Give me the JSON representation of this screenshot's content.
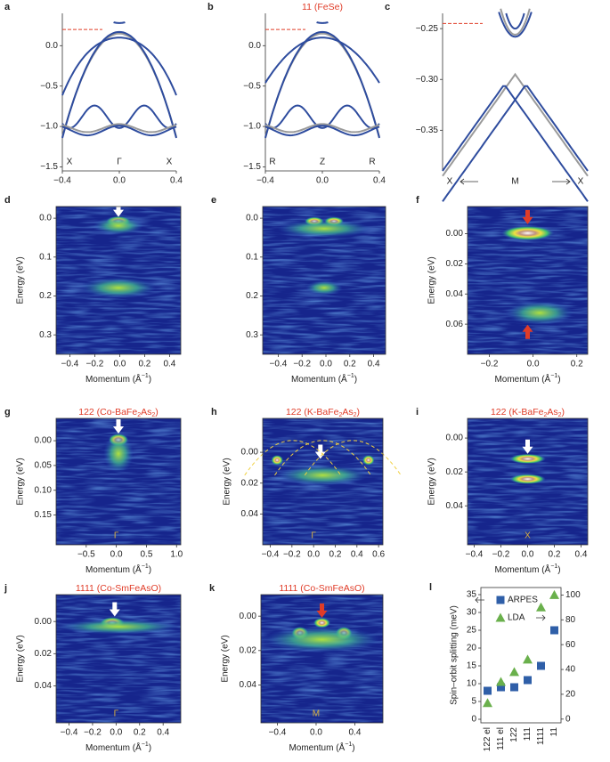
{
  "panels": [
    {
      "label": "a",
      "xlim": [
        -0.4,
        0.4
      ],
      "ylim": [
        -1.55,
        0.4
      ],
      "xticks": [
        {
          "value": -0.4,
          "label": "−0.4"
        },
        {
          "value": 0,
          "label": "0.0"
        },
        {
          "value": 0.4,
          "label": "0.4"
        }
      ],
      "yticks": [
        {
          "value": 0,
          "label": "0.0"
        },
        {
          "value": -0.5,
          "label": "−0.5"
        },
        {
          "value": -1,
          "label": "−1.0"
        },
        {
          "value": -1.5,
          "label": "−1.5"
        }
      ],
      "points": [
        "X",
        "Γ",
        "X"
      ]
    },
    {
      "label": "b",
      "title": [
        "11 (FeSe)"
      ],
      "xlim": [
        -0.4,
        0.4
      ],
      "ylim": [
        -1.55,
        0.4
      ],
      "xticks": [
        {
          "value": -0.4,
          "label": "−0.4"
        },
        {
          "value": 0,
          "label": "0.0"
        },
        {
          "value": 0.4,
          "label": "0.4"
        }
      ],
      "yticks": [
        {
          "value": 0,
          "label": "0.0"
        },
        {
          "value": -0.5,
          "label": "−0.5"
        },
        {
          "value": -1,
          "label": "−1.0"
        },
        {
          "value": -1.5,
          "label": "−1.5"
        }
      ],
      "points": [
        "R",
        "Z",
        "R"
      ]
    },
    {
      "label": "c",
      "xlim": [
        -0.4,
        0.4
      ],
      "ylim": [
        -0.39,
        -0.235
      ],
      "yticks": [
        {
          "value": -0.25,
          "label": "−0.25"
        },
        {
          "value": -0.3,
          "label": "−0.30"
        },
        {
          "value": -0.35,
          "label": "−0.35"
        }
      ],
      "points": [
        "X",
        "M",
        "X"
      ]
    },
    {
      "label": "d",
      "ylabel": "Energy (eV)",
      "xlabel": [
        "Momentum (Å",
        "−1",
        ")"
      ],
      "y_inverted": true,
      "xlim": [
        -0.51,
        0.49
      ],
      "ylim": [
        -0.03,
        0.35
      ],
      "xticks": [
        {
          "value": -0.4,
          "label": "−0.4"
        },
        {
          "value": -0.2,
          "label": "−0.2"
        },
        {
          "value": 0,
          "label": "0.0"
        },
        {
          "value": 0.2,
          "label": "0.2"
        },
        {
          "value": 0.4,
          "label": "0.4"
        }
      ],
      "yticks": [
        {
          "value": 0,
          "label": "0.0"
        },
        {
          "value": 0.1,
          "label": "0.1"
        },
        {
          "value": 0.2,
          "label": "0.2"
        },
        {
          "value": 0.3,
          "label": "0.3"
        }
      ]
    },
    {
      "label": "e",
      "xlabel": [
        "Momentum (Å",
        "−1",
        ")"
      ],
      "y_inverted": true,
      "xlim": [
        -0.53,
        0.5
      ],
      "ylim": [
        -0.03,
        0.35
      ],
      "xticks": [
        {
          "value": -0.4,
          "label": "−0.4"
        },
        {
          "value": -0.2,
          "label": "−0.2"
        },
        {
          "value": 0,
          "label": "0.0"
        },
        {
          "value": 0.2,
          "label": "0.2"
        },
        {
          "value": 0.4,
          "label": "0.4"
        }
      ],
      "yticks": [
        {
          "value": 0,
          "label": "0.0"
        },
        {
          "value": 0.1,
          "label": "0.1"
        },
        {
          "value": 0.2,
          "label": "0.2"
        },
        {
          "value": 0.3,
          "label": "0.3"
        }
      ]
    },
    {
      "label": "f",
      "ylabel": "Energy (eV)",
      "xlabel": [
        "Momentum (Å",
        "−1",
        ")"
      ],
      "y_inverted": true,
      "xlim": [
        -0.3,
        0.25
      ],
      "ylim": [
        -0.018,
        0.08
      ],
      "xticks": [
        {
          "value": -0.2,
          "label": "−0.2"
        },
        {
          "value": 0,
          "label": "0.0"
        },
        {
          "value": 0.2,
          "label": "0.2"
        }
      ],
      "yticks": [
        {
          "value": 0,
          "label": "0.00"
        },
        {
          "value": 0.02,
          "label": "0.02"
        },
        {
          "value": 0.04,
          "label": "0.04"
        },
        {
          "value": 0.06,
          "label": "0.06"
        }
      ]
    },
    {
      "label": "g",
      "title": [
        "122 (Co-BaFe",
        "2",
        "As",
        "2",
        ")"
      ],
      "ylabel": "Energy (eV)",
      "xlabel": [
        "Momentum (Å",
        "−1",
        ")"
      ],
      "y_inverted": true,
      "xlim": [
        -1.0,
        1.07
      ],
      "ylim": [
        -0.045,
        0.21
      ],
      "xticks": [
        {
          "value": -0.5,
          "label": "−0.5"
        },
        {
          "value": 0,
          "label": "0.0"
        },
        {
          "value": 0.5,
          "label": "0.5"
        },
        {
          "value": 1,
          "label": "1.0"
        }
      ],
      "yticks": [
        {
          "value": 0,
          "label": "0.00"
        },
        {
          "value": 0.05,
          "label": "0.05"
        },
        {
          "value": 0.1,
          "label": "0.10"
        },
        {
          "value": 0.15,
          "label": "0.15"
        }
      ],
      "points": [
        "Γ"
      ]
    },
    {
      "label": "h",
      "title": [
        "122 (K-BaFe",
        "2",
        "As",
        "2",
        ")"
      ],
      "ylabel": "Energy (eV)",
      "y_inverted": true,
      "xlim": [
        -0.47,
        0.64
      ],
      "ylim": [
        -0.022,
        0.06
      ],
      "xticks": [
        {
          "value": -0.4,
          "label": "−0.4"
        },
        {
          "value": -0.2,
          "label": "−0.2"
        },
        {
          "value": 0,
          "label": "0.0"
        },
        {
          "value": 0.2,
          "label": "0.2"
        },
        {
          "value": 0.4,
          "label": "0.4"
        },
        {
          "value": 0.6,
          "label": "0.6"
        }
      ],
      "yticks": [
        {
          "value": 0,
          "label": "0.00"
        },
        {
          "value": 0.02,
          "label": "0.02"
        },
        {
          "value": 0.04,
          "label": "0.04"
        }
      ],
      "points": [
        "Γ"
      ]
    },
    {
      "label": "i",
      "title": [
        "122 (K-BaFe",
        "2",
        "As",
        "2",
        ")"
      ],
      "ylabel": "Energy (eV)",
      "xlabel": [
        "Momentum (Å",
        "−1",
        ")"
      ],
      "y_inverted": true,
      "xlim": [
        -0.45,
        0.45
      ],
      "ylim": [
        -0.0116,
        0.063
      ],
      "xticks": [
        {
          "value": -0.4,
          "label": "−0.4"
        },
        {
          "value": -0.2,
          "label": "−0.2"
        },
        {
          "value": 0,
          "label": "0.0"
        },
        {
          "value": 0.2,
          "label": "0.2"
        },
        {
          "value": 0.4,
          "label": "0.4"
        }
      ],
      "yticks": [
        {
          "value": 0,
          "label": "0.00"
        },
        {
          "value": 0.02,
          "label": "0.02"
        },
        {
          "value": 0.04,
          "label": "0.04"
        }
      ],
      "points": [
        "X"
      ]
    },
    {
      "label": "j",
      "title": [
        "1111 (Co-SmFeAsO)"
      ],
      "ylabel": "Energy (eV)",
      "xlabel": [
        "Momentum (Å",
        "−1",
        ")"
      ],
      "y_inverted": true,
      "xlim": [
        -0.51,
        0.55
      ],
      "ylim": [
        -0.0167,
        0.063
      ],
      "xticks": [
        {
          "value": -0.4,
          "label": "−0.4"
        },
        {
          "value": -0.2,
          "label": "−0.2"
        },
        {
          "value": 0,
          "label": "0.0"
        },
        {
          "value": 0.2,
          "label": "0.2"
        },
        {
          "value": 0.4,
          "label": "0.4"
        }
      ],
      "yticks": [
        {
          "value": 0,
          "label": "0.00"
        },
        {
          "value": 0.02,
          "label": "0.02"
        },
        {
          "value": 0.04,
          "label": "0.04"
        }
      ],
      "points": [
        "Γ"
      ]
    },
    {
      "label": "k",
      "title": [
        "1111 (Co-SmFeAsO)"
      ],
      "ylabel": "Energy (eV)",
      "xlabel": [
        "Momentum (Å",
        "−1",
        ")"
      ],
      "y_inverted": true,
      "xlim": [
        -0.57,
        0.69
      ],
      "ylim": [
        -0.0125,
        0.062
      ],
      "xticks": [
        {
          "value": -0.4,
          "label": "−0.4"
        },
        {
          "value": 0,
          "label": "0.0"
        },
        {
          "value": 0.4,
          "label": "0.4"
        }
      ],
      "yticks": [
        {
          "value": 0,
          "label": "0.00"
        },
        {
          "value": 0.02,
          "label": "0.02"
        },
        {
          "value": 0.04,
          "label": "0.04"
        }
      ],
      "points": [
        "M"
      ]
    }
  ],
  "chart_data": {
    "type": "scatter",
    "label": "l",
    "ylabel": "Spin–orbit splitting (meV)",
    "categories": [
      "122 el",
      "111 el",
      "122",
      "111",
      "1111",
      "11"
    ],
    "ylim": [
      -1,
      37
    ],
    "yticks": [
      0,
      5,
      10,
      15,
      20,
      25,
      30,
      35
    ],
    "y2lim": [
      -3,
      106
    ],
    "y2ticks": [
      0,
      20,
      40,
      60,
      80,
      100
    ],
    "series": [
      {
        "name": "ARPES",
        "color": "#2f5fa8",
        "marker": "square",
        "values": [
          8,
          9,
          9,
          11,
          15,
          25
        ]
      },
      {
        "name": "LDA",
        "color": "#6ab04c",
        "marker": "triangle",
        "axis": "y2",
        "values": [
          13,
          30,
          38,
          48,
          90,
          100
        ]
      }
    ]
  }
}
